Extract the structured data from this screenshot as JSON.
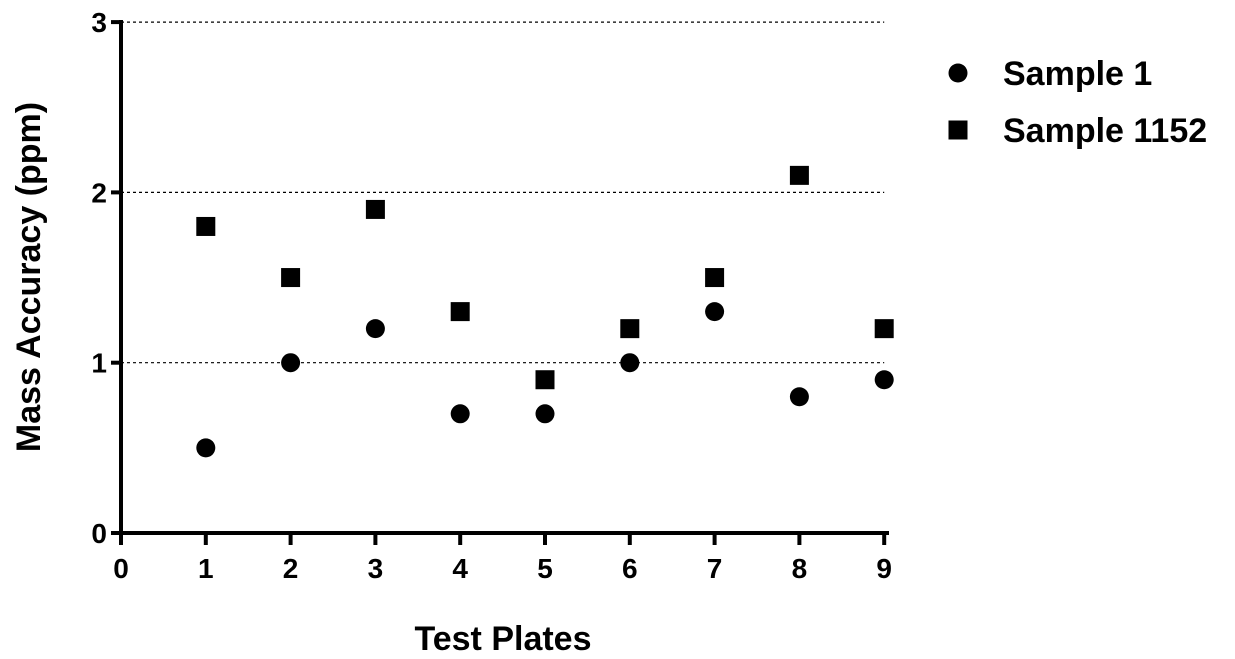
{
  "chart_data": {
    "type": "scatter",
    "title": "",
    "xlabel": "Test Plates",
    "ylabel": "Mass Accuracy (ppm)",
    "xlim": [
      0,
      9
    ],
    "ylim": [
      0,
      3
    ],
    "x_ticks": [
      0,
      1,
      2,
      3,
      4,
      5,
      6,
      7,
      8,
      9
    ],
    "y_ticks": [
      0,
      1,
      2,
      3
    ],
    "x_tick_labels": [
      "0",
      "1",
      "2",
      "3",
      "4",
      "5",
      "6",
      "7",
      "8",
      "9"
    ],
    "y_tick_labels": [
      "0",
      "1",
      "2",
      "3"
    ],
    "grid": "horizontal dotted at y = 1, 2, 3",
    "legend_position": "right",
    "series": [
      {
        "name": "Sample 1",
        "marker": "circle",
        "color": "#000000",
        "x": [
          1,
          2,
          3,
          4,
          5,
          6,
          7,
          8,
          9
        ],
        "y": [
          0.5,
          1.0,
          1.2,
          0.7,
          0.7,
          1.0,
          1.3,
          0.8,
          0.9
        ]
      },
      {
        "name": "Sample 1152",
        "marker": "square",
        "color": "#000000",
        "x": [
          1,
          2,
          3,
          4,
          5,
          6,
          7,
          8,
          9
        ],
        "y": [
          1.8,
          1.5,
          1.9,
          1.3,
          0.9,
          1.2,
          1.5,
          2.1,
          1.2
        ]
      }
    ]
  }
}
